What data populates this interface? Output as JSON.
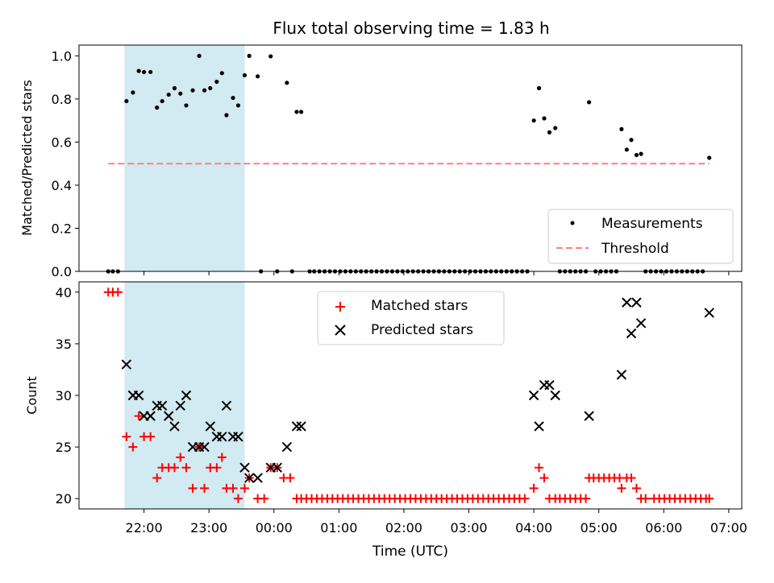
{
  "title": "Flux total observing time = 1.83 h",
  "colors": {
    "shade": "#add8e6",
    "measurements": "#000000",
    "threshold": "#ff7f7f",
    "matched": "#ff0000",
    "predicted": "#000000"
  },
  "chart_data": [
    {
      "type": "scatter",
      "ylabel": "Matched/Predicted stars",
      "ylim": [
        0,
        1.05
      ],
      "xlim_hours": [
        21.0,
        31.2
      ],
      "yticks": [
        "0.0",
        "0.2",
        "0.4",
        "0.6",
        "0.8",
        "1.0"
      ],
      "shaded_span": [
        21.7,
        23.55
      ],
      "legend": [
        "Measurements",
        "Threshold"
      ],
      "legend_position": "lower right",
      "threshold": {
        "y": 0.5,
        "x_range": [
          21.45,
          30.7
        ]
      },
      "series": [
        {
          "name": "Measurements",
          "points": [
            [
              21.45,
              0
            ],
            [
              21.52,
              0
            ],
            [
              21.6,
              0
            ],
            [
              21.73,
              0.79
            ],
            [
              21.83,
              0.83
            ],
            [
              21.92,
              0.93
            ],
            [
              22.0,
              0.925
            ],
            [
              22.1,
              0.925
            ],
            [
              22.2,
              0.76
            ],
            [
              22.28,
              0.79
            ],
            [
              22.38,
              0.82
            ],
            [
              22.47,
              0.85
            ],
            [
              22.56,
              0.825
            ],
            [
              22.65,
              0.77
            ],
            [
              22.75,
              0.84
            ],
            [
              22.85,
              1.0
            ],
            [
              22.93,
              0.84
            ],
            [
              23.02,
              0.85
            ],
            [
              23.12,
              0.88
            ],
            [
              23.2,
              0.92
            ],
            [
              23.27,
              0.725
            ],
            [
              23.37,
              0.805
            ],
            [
              23.45,
              0.77
            ],
            [
              23.55,
              0.91
            ],
            [
              23.62,
              1.0
            ],
            [
              23.75,
              0.905
            ],
            [
              23.8,
              0
            ],
            [
              23.95,
              0.998
            ],
            [
              24.05,
              0
            ],
            [
              24.2,
              0.875
            ],
            [
              24.28,
              0
            ],
            [
              24.35,
              0.74
            ],
            [
              24.42,
              0.74
            ],
            [
              24.55,
              0
            ],
            [
              24.62,
              0
            ],
            [
              24.7,
              0
            ],
            [
              24.78,
              0
            ],
            [
              24.86,
              0
            ],
            [
              24.94,
              0
            ],
            [
              25.02,
              0
            ],
            [
              25.1,
              0
            ],
            [
              25.18,
              0
            ],
            [
              25.26,
              0
            ],
            [
              25.34,
              0
            ],
            [
              25.42,
              0
            ],
            [
              25.5,
              0
            ],
            [
              25.58,
              0
            ],
            [
              25.66,
              0
            ],
            [
              25.74,
              0
            ],
            [
              25.82,
              0
            ],
            [
              25.9,
              0
            ],
            [
              25.98,
              0
            ],
            [
              26.06,
              0
            ],
            [
              26.14,
              0
            ],
            [
              26.22,
              0
            ],
            [
              26.3,
              0
            ],
            [
              26.38,
              0
            ],
            [
              26.46,
              0
            ],
            [
              26.54,
              0
            ],
            [
              26.62,
              0
            ],
            [
              26.7,
              0
            ],
            [
              26.78,
              0
            ],
            [
              26.86,
              0
            ],
            [
              26.94,
              0
            ],
            [
              27.02,
              0
            ],
            [
              27.1,
              0
            ],
            [
              27.18,
              0
            ],
            [
              27.26,
              0
            ],
            [
              27.34,
              0
            ],
            [
              27.42,
              0
            ],
            [
              27.5,
              0
            ],
            [
              27.58,
              0
            ],
            [
              27.66,
              0
            ],
            [
              27.74,
              0
            ],
            [
              27.82,
              0
            ],
            [
              27.9,
              0
            ],
            [
              28.0,
              0.7
            ],
            [
              28.08,
              0.85
            ],
            [
              28.16,
              0.71
            ],
            [
              28.24,
              0.645
            ],
            [
              28.33,
              0.665
            ],
            [
              28.4,
              0
            ],
            [
              28.48,
              0
            ],
            [
              28.56,
              0
            ],
            [
              28.64,
              0
            ],
            [
              28.72,
              0
            ],
            [
              28.8,
              0
            ],
            [
              28.85,
              0.785
            ],
            [
              28.95,
              0
            ],
            [
              29.03,
              0
            ],
            [
              29.11,
              0
            ],
            [
              29.19,
              0
            ],
            [
              29.27,
              0
            ],
            [
              29.35,
              0.66
            ],
            [
              29.43,
              0.565
            ],
            [
              29.5,
              0.61
            ],
            [
              29.58,
              0.54
            ],
            [
              29.65,
              0.545
            ],
            [
              29.72,
              0
            ],
            [
              29.8,
              0
            ],
            [
              29.88,
              0
            ],
            [
              29.96,
              0
            ],
            [
              30.04,
              0
            ],
            [
              30.12,
              0
            ],
            [
              30.2,
              0
            ],
            [
              30.28,
              0
            ],
            [
              30.36,
              0
            ],
            [
              30.44,
              0
            ],
            [
              30.52,
              0
            ],
            [
              30.6,
              0
            ],
            [
              30.7,
              0.527
            ]
          ]
        }
      ]
    },
    {
      "type": "scatter",
      "xlabel": "Time (UTC)",
      "ylabel": "Count",
      "ylim": [
        19,
        41
      ],
      "xlim_hours": [
        21.0,
        31.2
      ],
      "yticks": [
        "20",
        "25",
        "30",
        "35",
        "40"
      ],
      "xticks": [
        "22:00",
        "23:00",
        "00:00",
        "01:00",
        "02:00",
        "03:00",
        "04:00",
        "05:00",
        "06:00",
        "07:00"
      ],
      "shaded_span": [
        21.7,
        23.55
      ],
      "legend": [
        "Matched stars",
        "Predicted stars"
      ],
      "legend_position": "upper center",
      "series": [
        {
          "name": "Matched stars",
          "points": [
            [
              21.45,
              40
            ],
            [
              21.52,
              40
            ],
            [
              21.6,
              40
            ],
            [
              21.73,
              26
            ],
            [
              21.83,
              25
            ],
            [
              21.92,
              28
            ],
            [
              22.0,
              26
            ],
            [
              22.1,
              26
            ],
            [
              22.2,
              22
            ],
            [
              22.28,
              23
            ],
            [
              22.38,
              23
            ],
            [
              22.47,
              23
            ],
            [
              22.56,
              24
            ],
            [
              22.65,
              23
            ],
            [
              22.75,
              21
            ],
            [
              22.85,
              25
            ],
            [
              22.93,
              21
            ],
            [
              23.02,
              23
            ],
            [
              23.12,
              23
            ],
            [
              23.2,
              24
            ],
            [
              23.27,
              21
            ],
            [
              23.37,
              21
            ],
            [
              23.45,
              20
            ],
            [
              23.55,
              21
            ],
            [
              23.62,
              22
            ],
            [
              23.75,
              20
            ],
            [
              23.85,
              20
            ],
            [
              23.95,
              23
            ],
            [
              24.05,
              23
            ],
            [
              24.15,
              22
            ],
            [
              24.25,
              22
            ],
            [
              24.35,
              20
            ],
            [
              24.42,
              20
            ],
            [
              24.5,
              20
            ],
            [
              24.58,
              20
            ],
            [
              24.66,
              20
            ],
            [
              24.74,
              20
            ],
            [
              24.82,
              20
            ],
            [
              24.9,
              20
            ],
            [
              24.98,
              20
            ],
            [
              25.06,
              20
            ],
            [
              25.14,
              20
            ],
            [
              25.22,
              20
            ],
            [
              25.3,
              20
            ],
            [
              25.38,
              20
            ],
            [
              25.46,
              20
            ],
            [
              25.54,
              20
            ],
            [
              25.62,
              20
            ],
            [
              25.7,
              20
            ],
            [
              25.78,
              20
            ],
            [
              25.86,
              20
            ],
            [
              25.94,
              20
            ],
            [
              26.02,
              20
            ],
            [
              26.1,
              20
            ],
            [
              26.18,
              20
            ],
            [
              26.26,
              20
            ],
            [
              26.34,
              20
            ],
            [
              26.42,
              20
            ],
            [
              26.5,
              20
            ],
            [
              26.58,
              20
            ],
            [
              26.66,
              20
            ],
            [
              26.74,
              20
            ],
            [
              26.82,
              20
            ],
            [
              26.9,
              20
            ],
            [
              26.98,
              20
            ],
            [
              27.06,
              20
            ],
            [
              27.14,
              20
            ],
            [
              27.22,
              20
            ],
            [
              27.3,
              20
            ],
            [
              27.38,
              20
            ],
            [
              27.46,
              20
            ],
            [
              27.54,
              20
            ],
            [
              27.62,
              20
            ],
            [
              27.7,
              20
            ],
            [
              27.78,
              20
            ],
            [
              27.86,
              20
            ],
            [
              28.0,
              21
            ],
            [
              28.08,
              23
            ],
            [
              28.16,
              22
            ],
            [
              28.24,
              20
            ],
            [
              28.33,
              20
            ],
            [
              28.4,
              20
            ],
            [
              28.48,
              20
            ],
            [
              28.56,
              20
            ],
            [
              28.64,
              20
            ],
            [
              28.72,
              20
            ],
            [
              28.8,
              20
            ],
            [
              28.85,
              22
            ],
            [
              28.92,
              22
            ],
            [
              29.0,
              22
            ],
            [
              29.08,
              22
            ],
            [
              29.16,
              22
            ],
            [
              29.24,
              22
            ],
            [
              29.32,
              22
            ],
            [
              29.35,
              21
            ],
            [
              29.43,
              22
            ],
            [
              29.5,
              22
            ],
            [
              29.58,
              21
            ],
            [
              29.65,
              20
            ],
            [
              29.72,
              20
            ],
            [
              29.85,
              20
            ],
            [
              29.93,
              20
            ],
            [
              30.01,
              20
            ],
            [
              30.09,
              20
            ],
            [
              30.17,
              20
            ],
            [
              30.25,
              20
            ],
            [
              30.33,
              20
            ],
            [
              30.41,
              20
            ],
            [
              30.49,
              20
            ],
            [
              30.57,
              20
            ],
            [
              30.65,
              20
            ],
            [
              30.7,
              20
            ]
          ]
        },
        {
          "name": "Predicted stars",
          "points": [
            [
              21.73,
              33
            ],
            [
              21.83,
              30
            ],
            [
              21.92,
              30
            ],
            [
              22.0,
              28
            ],
            [
              22.1,
              28
            ],
            [
              22.2,
              29
            ],
            [
              22.28,
              29
            ],
            [
              22.38,
              28
            ],
            [
              22.47,
              27
            ],
            [
              22.56,
              29
            ],
            [
              22.65,
              30
            ],
            [
              22.75,
              25
            ],
            [
              22.85,
              25
            ],
            [
              22.93,
              25
            ],
            [
              23.02,
              27
            ],
            [
              23.12,
              26
            ],
            [
              23.2,
              26
            ],
            [
              23.27,
              29
            ],
            [
              23.37,
              26
            ],
            [
              23.45,
              26
            ],
            [
              23.55,
              23
            ],
            [
              23.62,
              22
            ],
            [
              23.75,
              22
            ],
            [
              23.95,
              23
            ],
            [
              24.05,
              23
            ],
            [
              24.2,
              25
            ],
            [
              24.35,
              27
            ],
            [
              24.42,
              27
            ],
            [
              28.0,
              30
            ],
            [
              28.08,
              27
            ],
            [
              28.16,
              31
            ],
            [
              28.24,
              31
            ],
            [
              28.33,
              30
            ],
            [
              28.85,
              28
            ],
            [
              29.35,
              32
            ],
            [
              29.43,
              39
            ],
            [
              29.5,
              36
            ],
            [
              29.58,
              39
            ],
            [
              29.65,
              37
            ],
            [
              30.7,
              38
            ]
          ]
        }
      ]
    }
  ]
}
